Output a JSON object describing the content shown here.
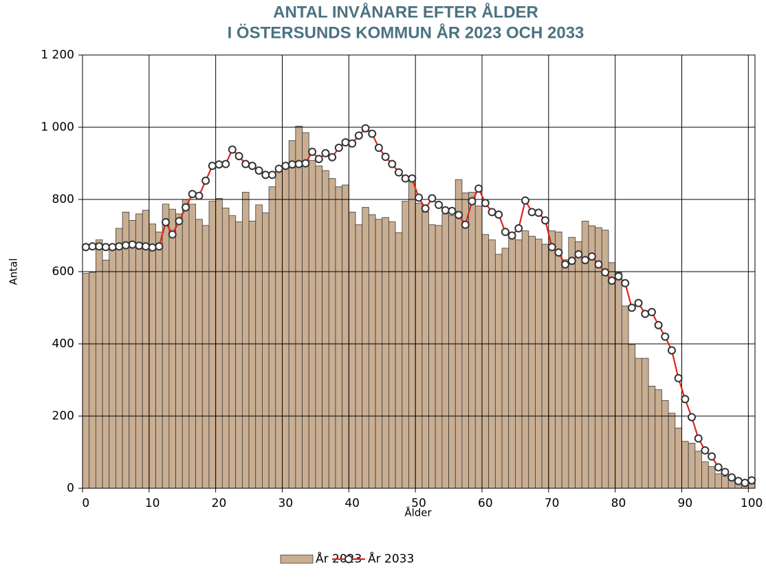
{
  "chart_data": {
    "type": "bar_line",
    "title": [
      "ANTAL INVÅNARE EFTER ÅLDER",
      "I ÖSTERSUNDS KOMMUN ÅR 2023 OCH 2033"
    ],
    "x_label": "Ålder",
    "y_label": "Antal",
    "categories": [
      0,
      null,
      null,
      null,
      null,
      null,
      null,
      null,
      null,
      null,
      10,
      null,
      null,
      null,
      null,
      null,
      null,
      null,
      null,
      null,
      20,
      null,
      null,
      null,
      null,
      null,
      null,
      null,
      null,
      null,
      30,
      null,
      null,
      null,
      null,
      null,
      null,
      null,
      null,
      null,
      40,
      null,
      null,
      null,
      null,
      null,
      null,
      null,
      null,
      null,
      50,
      null,
      null,
      null,
      null,
      null,
      null,
      null,
      null,
      null,
      60,
      null,
      null,
      null,
      null,
      null,
      null,
      null,
      null,
      null,
      70,
      null,
      null,
      null,
      null,
      null,
      null,
      null,
      null,
      null,
      80,
      null,
      null,
      null,
      null,
      null,
      null,
      null,
      null,
      null,
      90,
      null,
      null,
      null,
      null,
      null,
      null,
      null,
      null,
      null,
      100
    ],
    "series": [
      {
        "name": "År 2023",
        "type": "bar",
        "color": "#c9ae92",
        "values": [
          595,
          598,
          688,
          632,
          668,
          720,
          765,
          742,
          760,
          770,
          732,
          710,
          787,
          773,
          760,
          800,
          787,
          745,
          728,
          795,
          803,
          776,
          755,
          738,
          820,
          740,
          785,
          763,
          835,
          882,
          900,
          963,
          1003,
          985,
          908,
          893,
          880,
          858,
          835,
          840,
          765,
          730,
          778,
          758,
          745,
          750,
          738,
          708,
          795,
          855,
          790,
          765,
          730,
          728,
          760,
          755,
          855,
          818,
          820,
          782,
          703,
          688,
          648,
          665,
          705,
          688,
          713,
          698,
          690,
          676,
          713,
          710,
          633,
          695,
          683,
          740,
          727,
          722,
          715,
          625,
          598,
          505,
          398,
          360,
          360,
          283,
          273,
          243,
          208,
          167,
          130,
          125,
          103,
          73,
          60,
          40,
          33,
          22,
          15,
          10,
          12
        ]
      },
      {
        "name": "År 2033",
        "type": "line",
        "color": "#e3211c",
        "values": [
          668,
          670,
          670,
          668,
          668,
          670,
          673,
          675,
          672,
          670,
          667,
          670,
          737,
          703,
          740,
          778,
          815,
          810,
          852,
          893,
          897,
          898,
          938,
          920,
          898,
          893,
          880,
          868,
          868,
          885,
          893,
          897,
          898,
          900,
          932,
          912,
          928,
          917,
          943,
          958,
          955,
          977,
          997,
          982,
          943,
          918,
          898,
          875,
          858,
          858,
          805,
          775,
          803,
          785,
          770,
          768,
          757,
          730,
          795,
          830,
          790,
          765,
          758,
          710,
          700,
          720,
          797,
          765,
          763,
          742,
          668,
          653,
          620,
          630,
          648,
          632,
          642,
          620,
          598,
          575,
          587,
          568,
          500,
          513,
          483,
          488,
          452,
          420,
          382,
          305,
          247,
          197,
          138,
          105,
          88,
          58,
          45,
          30,
          20,
          15,
          22
        ]
      }
    ],
    "ylim": [
      0,
      1200
    ],
    "yticks": [
      0,
      200,
      400,
      600,
      800,
      {
        "value": 1000,
        "label": "1 000"
      },
      {
        "value": 1200,
        "label": "1 200"
      }
    ],
    "grid": true,
    "legend": "bottom"
  }
}
